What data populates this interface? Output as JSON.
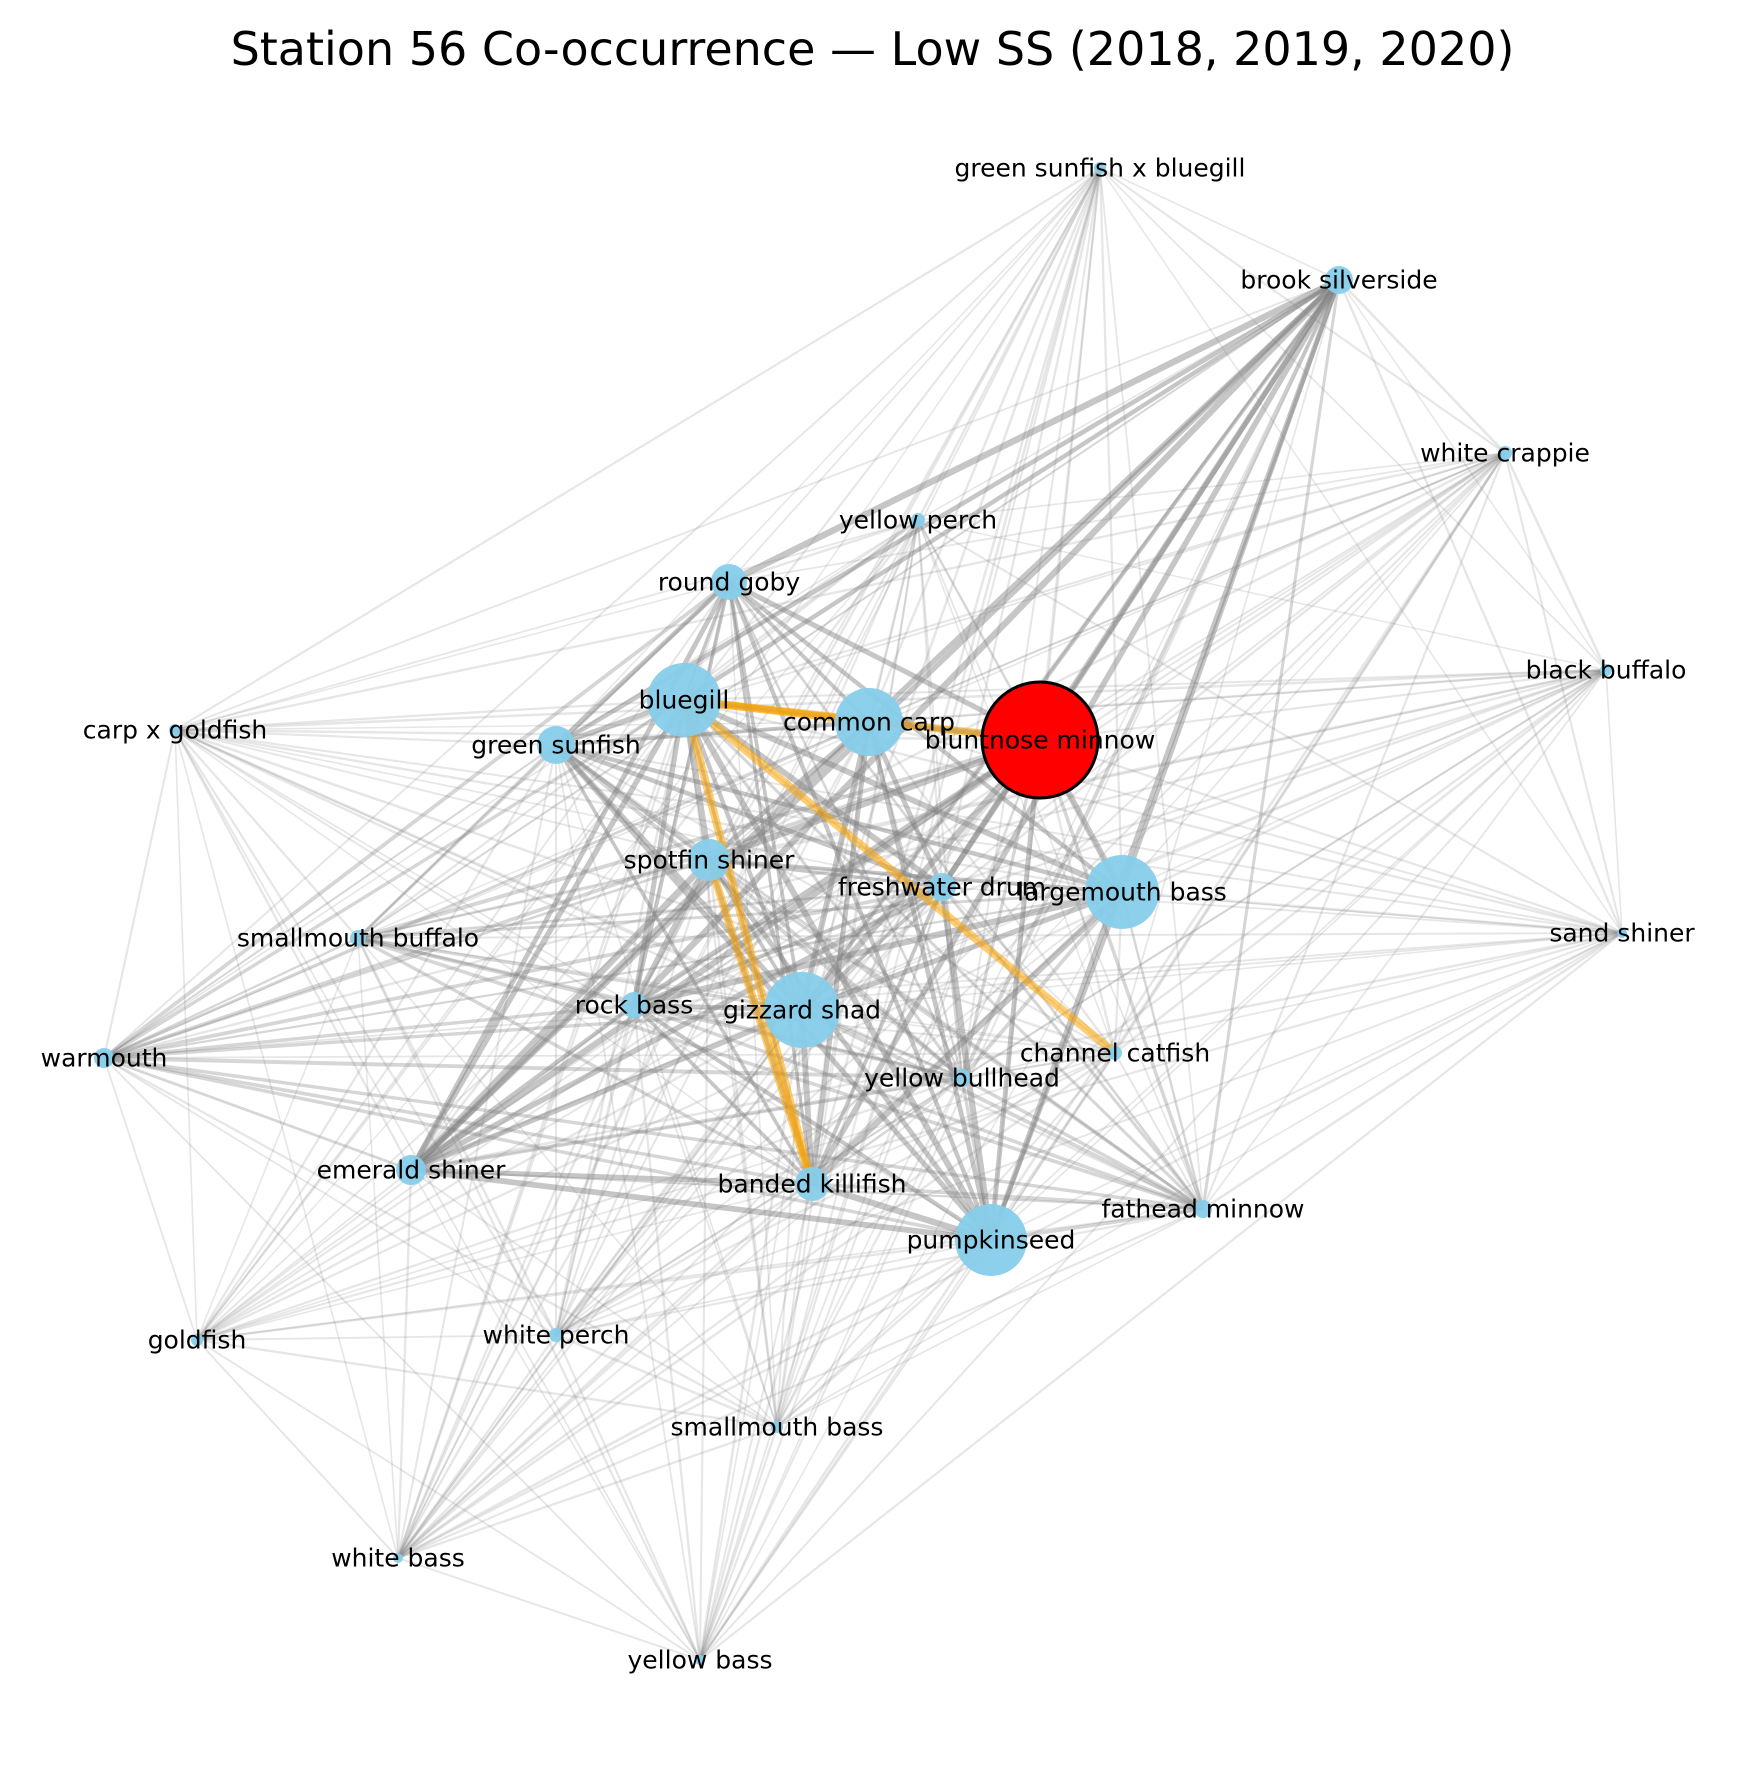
{
  "title": "Station 56 Co-occurrence — Low SS  (2018, 2019, 2020)",
  "colors": {
    "focus_node": "#ff0000",
    "node": "#87ceeb",
    "edge": "#808080",
    "highlight_edge": "#ffa500"
  },
  "focus": "bluntnose minnow",
  "nodes": [
    {
      "name": "bluntnose minnow",
      "focus": true
    },
    {
      "name": "green sunfish x bluegill"
    },
    {
      "name": "brook silverside"
    },
    {
      "name": "white crappie"
    },
    {
      "name": "yellow perch"
    },
    {
      "name": "round goby"
    },
    {
      "name": "black buffalo"
    },
    {
      "name": "bluegill"
    },
    {
      "name": "common carp"
    },
    {
      "name": "carp x goldfish"
    },
    {
      "name": "green sunfish"
    },
    {
      "name": "spotfin shiner"
    },
    {
      "name": "freshwater drum"
    },
    {
      "name": "largemouth bass"
    },
    {
      "name": "sand shiner"
    },
    {
      "name": "smallmouth buffalo"
    },
    {
      "name": "rock bass"
    },
    {
      "name": "gizzard shad"
    },
    {
      "name": "warmouth"
    },
    {
      "name": "channel catfish"
    },
    {
      "name": "yellow bullhead"
    },
    {
      "name": "emerald shiner"
    },
    {
      "name": "banded killifish"
    },
    {
      "name": "fathead minnow"
    },
    {
      "name": "pumpkinseed"
    },
    {
      "name": "goldfish"
    },
    {
      "name": "white perch"
    },
    {
      "name": "smallmouth bass"
    },
    {
      "name": "white bass"
    },
    {
      "name": "yellow bass"
    }
  ],
  "highlight_edges": [
    [
      "bluntnose minnow",
      "bluegill"
    ],
    [
      "bluegill",
      "common carp"
    ],
    [
      "bluegill",
      "channel catfish"
    ],
    [
      "bluegill",
      "banded killifish"
    ],
    [
      "spotfin shiner",
      "banded killifish"
    ]
  ]
}
